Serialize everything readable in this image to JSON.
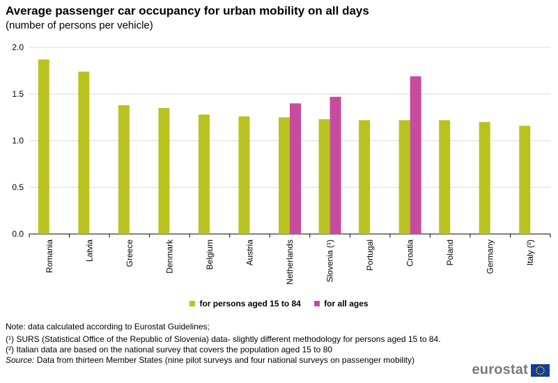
{
  "header": {
    "title": "Average passenger car occupancy for urban mobility on all days",
    "subtitle": "(number of persons per vehicle)"
  },
  "chart_data": {
    "type": "bar",
    "title": "Average passenger car occupancy for urban mobility on all days",
    "subtitle": "(number of persons per vehicle)",
    "categories": [
      "Romania",
      "Latvia",
      "Greece",
      "Denmark",
      "Belgium",
      "Austria",
      "Netherlands",
      "Slovenia (¹)",
      "Portugal",
      "Croatia",
      "Poland",
      "Germany",
      "Italy (²)"
    ],
    "series": [
      {
        "name": "for persons aged 15 to 84",
        "color": "#b9c31f",
        "values": [
          1.87,
          1.74,
          1.38,
          1.35,
          1.28,
          1.26,
          1.25,
          1.23,
          1.22,
          1.22,
          1.22,
          1.2,
          1.16
        ]
      },
      {
        "name": "for all ages",
        "color": "#c84b9e",
        "values": [
          null,
          null,
          null,
          null,
          null,
          null,
          1.4,
          1.47,
          null,
          1.69,
          null,
          null,
          null
        ]
      }
    ],
    "yticks": [
      "0.0",
      "0.5",
      "1.0",
      "1.5",
      "2.0"
    ],
    "ylim": [
      0,
      2.0
    ],
    "grid": true,
    "legend_position": "bottom"
  },
  "notes": {
    "note": "Note: data calculated according to Eurostat Guidelines;",
    "footnote1": "(¹) SURS (Statistical Office of the Republic of Slovenia) data- slightly different methodology for persons aged 15 to 84.",
    "footnote2": "(²) Italian data are based on the national survey that covers the population aged 15 to 80",
    "source_label": "Source:",
    "source_text": " Data from thirteen Member States (nine pilot surveys and four national surveys on passenger mobility)"
  },
  "logo": {
    "text": "eurostat"
  }
}
